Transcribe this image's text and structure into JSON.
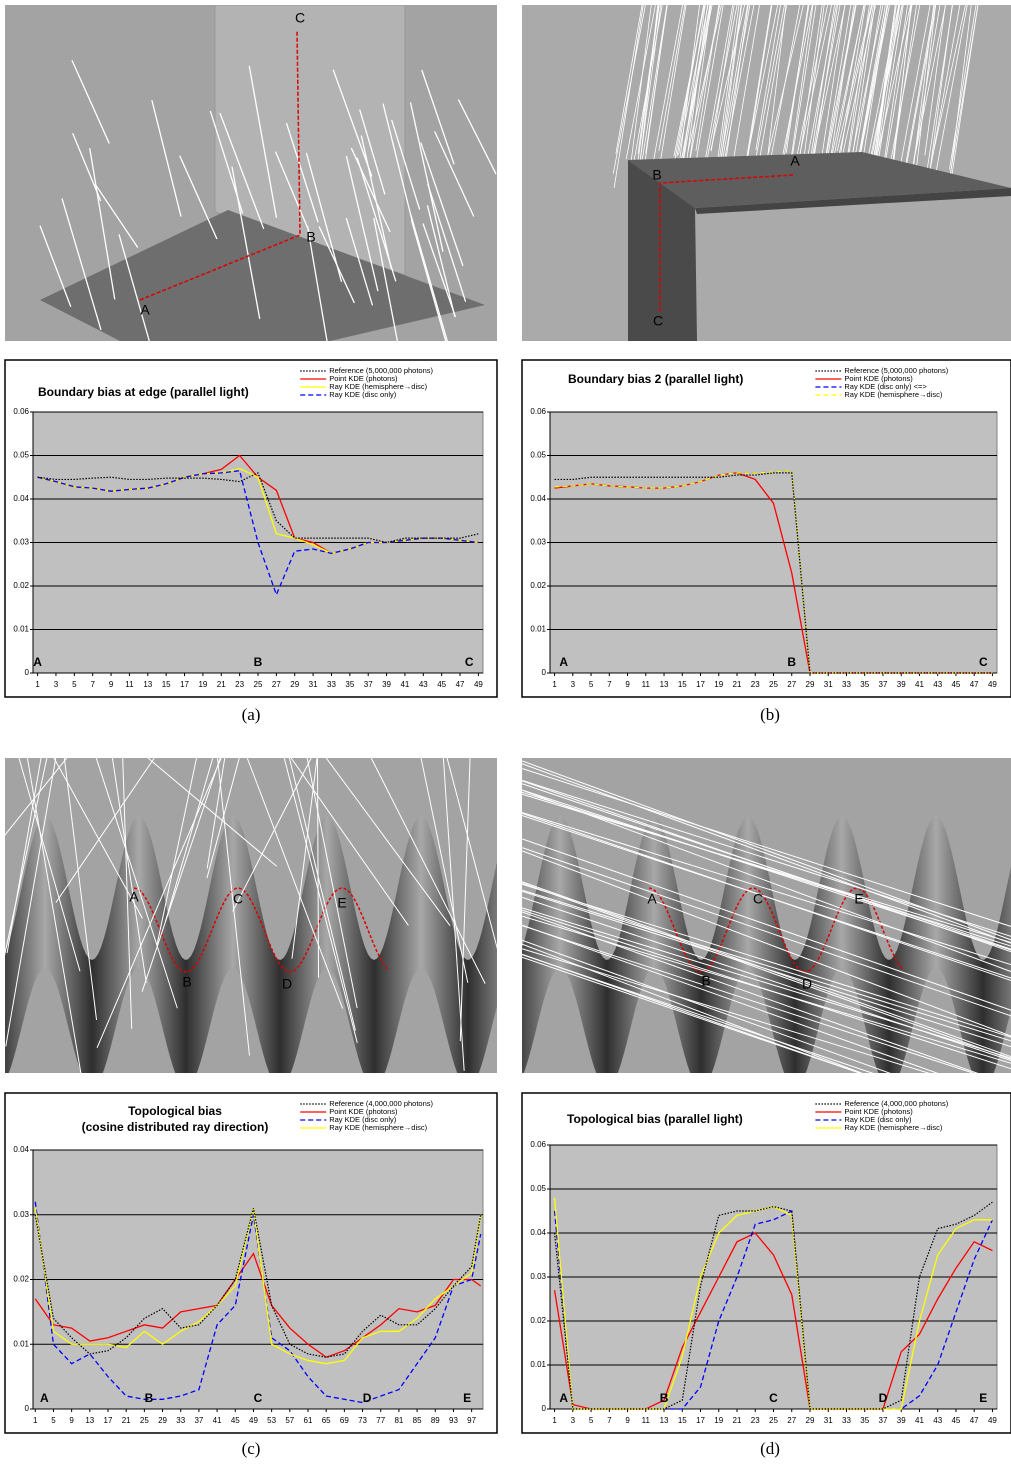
{
  "captions": [
    "(a)",
    "(b)",
    "(c)",
    "(d)"
  ],
  "renders": [
    {
      "labels": [
        "A",
        "B",
        "C"
      ]
    },
    {
      "labels": [
        "A",
        "B",
        "C"
      ]
    },
    {
      "labels": [
        "A",
        "B",
        "C",
        "D",
        "E"
      ]
    },
    {
      "labels": [
        "A",
        "B",
        "C",
        "D",
        "E"
      ]
    }
  ],
  "chart_data": [
    {
      "type": "line",
      "title": "Boundary bias at edge (parallel light)",
      "x": [
        1,
        3,
        5,
        7,
        9,
        11,
        13,
        15,
        17,
        19,
        21,
        23,
        25,
        27,
        29,
        31,
        33,
        35,
        37,
        39,
        41,
        43,
        45,
        47,
        49
      ],
      "xlim": [
        0.5,
        49.5
      ],
      "xticks": [
        1,
        3,
        5,
        7,
        9,
        11,
        13,
        15,
        17,
        19,
        21,
        23,
        25,
        27,
        29,
        31,
        33,
        35,
        37,
        39,
        41,
        43,
        45,
        47,
        49
      ],
      "ylim": [
        0,
        0.06
      ],
      "yticks": [
        0,
        0.01,
        0.02,
        0.03,
        0.04,
        0.05,
        0.06
      ],
      "grid": true,
      "plot_color": "#c0c0c0",
      "annotations": [
        {
          "text": "A",
          "x": 1
        },
        {
          "text": "B",
          "x": 25
        },
        {
          "text": "C",
          "x": 48
        }
      ],
      "series": [
        {
          "name": "Reference (5,000,000 photons)",
          "color": "#000000",
          "dash": "dot",
          "values": [
            0.045,
            0.0445,
            0.0445,
            0.0448,
            0.045,
            0.0445,
            0.0445,
            0.0448,
            0.0448,
            0.0448,
            0.0445,
            0.044,
            0.046,
            0.035,
            0.031,
            0.031,
            0.031,
            0.031,
            0.031,
            0.03,
            0.031,
            0.031,
            0.031,
            0.031,
            0.032
          ]
        },
        {
          "name": "Point KDE (photons)",
          "color": "#ff0000",
          "dash": "solid",
          "values": [
            0.045,
            0.044,
            0.0428,
            0.0425,
            0.0418,
            0.0422,
            0.0425,
            0.0435,
            0.045,
            0.0458,
            0.0468,
            0.05,
            0.045,
            0.042,
            0.031,
            0.03,
            0.0275,
            0.0285,
            0.03,
            0.03,
            0.0305,
            0.031,
            0.031,
            0.0305,
            0.03
          ]
        },
        {
          "name": "Ray KDE (hemisphere→disc)",
          "color": "#ffff00",
          "dash": "solid",
          "values": [
            0.045,
            0.044,
            0.0428,
            0.0425,
            0.0418,
            0.0422,
            0.0425,
            0.0435,
            0.045,
            0.0458,
            0.046,
            0.047,
            0.045,
            0.032,
            0.031,
            0.0295,
            0.0275,
            0.0285,
            0.03,
            0.03,
            0.0305,
            0.031,
            0.031,
            0.0305,
            0.03
          ]
        },
        {
          "name": "Ray KDE (disc only)",
          "color": "#0000ff",
          "dash": "dash",
          "values": [
            0.045,
            0.044,
            0.0428,
            0.0425,
            0.0418,
            0.0422,
            0.0425,
            0.0435,
            0.045,
            0.0458,
            0.046,
            0.0465,
            0.03,
            0.018,
            0.028,
            0.0285,
            0.0275,
            0.0285,
            0.03,
            0.03,
            0.0305,
            0.031,
            0.031,
            0.0305,
            0.03
          ]
        }
      ]
    },
    {
      "type": "line",
      "title": "Boundary bias 2 (parallel light)",
      "x": [
        1,
        3,
        5,
        7,
        9,
        11,
        13,
        15,
        17,
        19,
        21,
        23,
        25,
        27,
        29,
        31,
        33,
        35,
        37,
        39,
        41,
        43,
        45,
        47,
        49
      ],
      "xlim": [
        0.5,
        49.5
      ],
      "xticks": [
        1,
        3,
        5,
        7,
        9,
        11,
        13,
        15,
        17,
        19,
        21,
        23,
        25,
        27,
        29,
        31,
        33,
        35,
        37,
        39,
        41,
        43,
        45,
        47,
        49
      ],
      "ylim": [
        0,
        0.06
      ],
      "yticks": [
        0,
        0.01,
        0.02,
        0.03,
        0.04,
        0.05,
        0.06
      ],
      "grid": true,
      "plot_color": "#c0c0c0",
      "annotations": [
        {
          "text": "A",
          "x": 2
        },
        {
          "text": "B",
          "x": 27
        },
        {
          "text": "C",
          "x": 48
        }
      ],
      "series": [
        {
          "name": "Reference (5,000,000 photons)",
          "color": "#000000",
          "dash": "dot",
          "values": [
            0.0445,
            0.0445,
            0.045,
            0.045,
            0.045,
            0.045,
            0.045,
            0.045,
            0.045,
            0.045,
            0.0455,
            0.0455,
            0.046,
            0.046,
            0,
            0,
            0,
            0,
            0,
            0,
            0,
            0,
            0,
            0,
            0
          ]
        },
        {
          "name": "Point KDE (photons)",
          "color": "#ff0000",
          "dash": "solid",
          "values": [
            0.0425,
            0.043,
            0.0435,
            0.043,
            0.0428,
            0.0425,
            0.0425,
            0.043,
            0.044,
            0.0455,
            0.046,
            0.0445,
            0.039,
            0.023,
            0,
            0,
            0,
            0,
            0,
            0,
            0,
            0,
            0,
            0,
            0
          ]
        },
        {
          "name": "Ray KDE (disc only) <=>",
          "color": "#0000ff",
          "dash": "dash",
          "values": [
            0.0428,
            0.043,
            0.0435,
            0.043,
            0.0428,
            0.0425,
            0.0425,
            0.043,
            0.044,
            0.0455,
            0.046,
            0.046,
            0.0462,
            0.0465,
            0,
            0,
            0,
            0,
            0,
            0,
            0,
            0,
            0,
            0,
            0
          ]
        },
        {
          "name": "Ray KDE (hemisphere→disc)",
          "color": "#ffff00",
          "dash": "dash",
          "values": [
            0.0428,
            0.043,
            0.0435,
            0.043,
            0.0428,
            0.0425,
            0.0425,
            0.043,
            0.044,
            0.0455,
            0.046,
            0.046,
            0.0462,
            0.0465,
            0,
            0,
            0,
            0,
            0,
            0,
            0,
            0,
            0,
            0,
            0
          ]
        }
      ]
    },
    {
      "type": "line",
      "title": "Topological bias",
      "subtitle": "(cosine distributed ray direction)",
      "x": [
        1,
        5,
        9,
        13,
        17,
        21,
        25,
        29,
        33,
        37,
        41,
        45,
        49,
        53,
        57,
        61,
        65,
        69,
        73,
        77,
        81,
        85,
        89,
        93,
        97,
        99
      ],
      "xlim": [
        0.5,
        99.5
      ],
      "xticks": [
        1,
        5,
        9,
        13,
        17,
        21,
        25,
        29,
        33,
        37,
        41,
        45,
        49,
        53,
        57,
        61,
        65,
        69,
        73,
        77,
        81,
        85,
        89,
        93,
        97
      ],
      "ylim": [
        0,
        0.04
      ],
      "yticks": [
        0,
        0.01,
        0.02,
        0.03,
        0.04
      ],
      "grid": true,
      "plot_color": "#c0c0c0",
      "annotations": [
        {
          "text": "A",
          "x": 3
        },
        {
          "text": "B",
          "x": 26
        },
        {
          "text": "C",
          "x": 50
        },
        {
          "text": "D",
          "x": 74
        },
        {
          "text": "E",
          "x": 96
        }
      ],
      "series": [
        {
          "name": "Reference (4,000,000 photons)",
          "color": "#000000",
          "dash": "dot",
          "values": [
            0.03,
            0.014,
            0.011,
            0.0085,
            0.009,
            0.011,
            0.014,
            0.0155,
            0.0125,
            0.013,
            0.016,
            0.02,
            0.031,
            0.016,
            0.01,
            0.0085,
            0.008,
            0.0085,
            0.012,
            0.0145,
            0.013,
            0.013,
            0.0155,
            0.019,
            0.022,
            0.03
          ]
        },
        {
          "name": "Point KDE (photons)",
          "color": "#ff0000",
          "dash": "solid",
          "values": [
            0.017,
            0.013,
            0.0125,
            0.0105,
            0.011,
            0.012,
            0.013,
            0.0125,
            0.015,
            0.0155,
            0.016,
            0.02,
            0.024,
            0.016,
            0.0125,
            0.01,
            0.008,
            0.009,
            0.011,
            0.013,
            0.0155,
            0.015,
            0.016,
            0.02,
            0.02,
            0.019
          ]
        },
        {
          "name": "Ray KDE (disc only)",
          "color": "#0000ff",
          "dash": "dash",
          "values": [
            0.032,
            0.01,
            0.007,
            0.0085,
            0.005,
            0.002,
            0.0015,
            0.0015,
            0.002,
            0.003,
            0.013,
            0.016,
            0.03,
            0.011,
            0.009,
            0.005,
            0.002,
            0.0015,
            0.001,
            0.002,
            0.003,
            0.007,
            0.011,
            0.019,
            0.02,
            0.027
          ]
        },
        {
          "name": "Ray KDE (hemisphere→disc)",
          "color": "#ffff00",
          "dash": "solid",
          "values": [
            0.031,
            0.012,
            0.01,
            0.01,
            0.01,
            0.0095,
            0.012,
            0.01,
            0.012,
            0.0135,
            0.016,
            0.019,
            0.031,
            0.01,
            0.0085,
            0.0075,
            0.007,
            0.0075,
            0.011,
            0.012,
            0.012,
            0.014,
            0.017,
            0.019,
            0.021,
            0.03
          ]
        }
      ]
    },
    {
      "type": "line",
      "title": "Topological bias (parallel light)",
      "x": [
        1,
        3,
        5,
        7,
        9,
        11,
        13,
        15,
        17,
        19,
        21,
        23,
        25,
        27,
        29,
        31,
        33,
        35,
        37,
        39,
        41,
        43,
        45,
        47,
        49
      ],
      "xlim": [
        0.5,
        49.5
      ],
      "xticks": [
        1,
        3,
        5,
        7,
        9,
        11,
        13,
        15,
        17,
        19,
        21,
        23,
        25,
        27,
        29,
        31,
        33,
        35,
        37,
        39,
        41,
        43,
        45,
        47,
        49
      ],
      "ylim": [
        0,
        0.06
      ],
      "yticks": [
        0,
        0.01,
        0.02,
        0.03,
        0.04,
        0.05,
        0.06
      ],
      "grid": true,
      "plot_color": "#c0c0c0",
      "annotations": [
        {
          "text": "A",
          "x": 2
        },
        {
          "text": "B",
          "x": 13
        },
        {
          "text": "C",
          "x": 25
        },
        {
          "text": "D",
          "x": 37
        },
        {
          "text": "E",
          "x": 48
        }
      ],
      "series": [
        {
          "name": "Reference (4,000,000 photons)",
          "color": "#000000",
          "dash": "dot",
          "values": [
            0.04,
            0,
            0,
            0,
            0,
            0,
            0,
            0.002,
            0.028,
            0.044,
            0.045,
            0.045,
            0.046,
            0.045,
            0,
            0,
            0,
            0,
            0,
            0.002,
            0.03,
            0.041,
            0.042,
            0.044,
            0.047
          ]
        },
        {
          "name": "Point KDE (photons)",
          "color": "#ff0000",
          "dash": "solid",
          "values": [
            0.027,
            0.001,
            0,
            0,
            0,
            0,
            0.002,
            0.014,
            0.022,
            0.03,
            0.038,
            0.04,
            0.035,
            0.026,
            0,
            0,
            0,
            0,
            0,
            0.013,
            0.017,
            0.025,
            0.032,
            0.038,
            0.036
          ]
        },
        {
          "name": "Ray KDE (disc only)",
          "color": "#0000ff",
          "dash": "dash",
          "values": [
            0.045,
            0,
            0,
            0,
            0,
            0,
            0,
            0,
            0.005,
            0.02,
            0.03,
            0.042,
            0.043,
            0.045,
            0,
            0,
            0,
            0,
            0,
            0,
            0.003,
            0.01,
            0.022,
            0.034,
            0.043
          ]
        },
        {
          "name": "Ray KDE (hemisphere→disc)",
          "color": "#ffff00",
          "dash": "solid",
          "values": [
            0.048,
            0,
            0,
            0,
            0,
            0,
            0,
            0.012,
            0.03,
            0.04,
            0.044,
            0.045,
            0.046,
            0.044,
            0,
            0,
            0,
            0,
            0,
            0,
            0.02,
            0.035,
            0.041,
            0.043,
            0.043
          ]
        }
      ]
    }
  ]
}
